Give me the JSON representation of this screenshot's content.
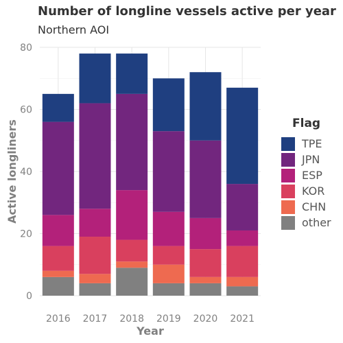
{
  "chart_data": {
    "type": "bar",
    "stacked": true,
    "title": "Number of longline vessels active per year",
    "subtitle": "Northern AOI",
    "xlabel": "Year",
    "ylabel": "Active longliners",
    "categories": [
      "2016",
      "2017",
      "2018",
      "2019",
      "2020",
      "2021"
    ],
    "ylim": [
      0,
      80
    ],
    "yticks": [
      0,
      20,
      40,
      60,
      80
    ],
    "grid": true,
    "legend_title": "Flag",
    "legend_position": "right",
    "series": [
      {
        "name": "other",
        "color": "#808080",
        "values": [
          6,
          4,
          9,
          4,
          4,
          3
        ]
      },
      {
        "name": "CHN",
        "color": "#EE6A50",
        "values": [
          2,
          3,
          2,
          6,
          2,
          3
        ]
      },
      {
        "name": "KOR",
        "color": "#D9405E",
        "values": [
          8,
          12,
          7,
          6,
          9,
          10
        ]
      },
      {
        "name": "ESP",
        "color": "#B3217A",
        "values": [
          10,
          9,
          16,
          11,
          10,
          5
        ]
      },
      {
        "name": "JPN",
        "color": "#72267E",
        "values": [
          30,
          34,
          31,
          26,
          25,
          15
        ]
      },
      {
        "name": "TPE",
        "color": "#1F3F80",
        "values": [
          9,
          16,
          13,
          17,
          22,
          31
        ]
      }
    ],
    "legend_order": [
      "TPE",
      "JPN",
      "ESP",
      "KOR",
      "CHN",
      "other"
    ]
  }
}
